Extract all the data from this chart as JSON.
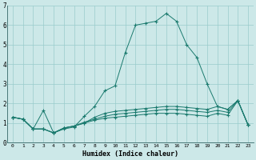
{
  "xlabel": "Humidex (Indice chaleur)",
  "background_color": "#cce8e8",
  "grid_color": "#99cccc",
  "line_color": "#1a7a6e",
  "xlim": [
    -0.5,
    23.5
  ],
  "ylim": [
    0,
    7
  ],
  "xticks": [
    0,
    1,
    2,
    3,
    4,
    5,
    6,
    7,
    8,
    9,
    10,
    11,
    12,
    13,
    14,
    15,
    16,
    17,
    18,
    19,
    20,
    21,
    22,
    23
  ],
  "yticks": [
    0,
    1,
    2,
    3,
    4,
    5,
    6,
    7
  ],
  "series": [
    [
      1.3,
      1.2,
      0.7,
      1.65,
      0.5,
      0.7,
      0.8,
      1.35,
      1.85,
      2.65,
      2.9,
      4.6,
      6.0,
      6.1,
      6.2,
      6.6,
      6.2,
      5.0,
      4.35,
      3.0,
      1.85,
      1.7,
      2.15,
      0.9
    ],
    [
      1.3,
      1.2,
      0.7,
      0.7,
      0.5,
      0.75,
      0.85,
      1.0,
      1.3,
      1.5,
      1.6,
      1.65,
      1.7,
      1.75,
      1.8,
      1.85,
      1.85,
      1.8,
      1.75,
      1.7,
      1.85,
      1.7,
      2.15,
      0.9
    ],
    [
      1.3,
      1.2,
      0.7,
      0.7,
      0.5,
      0.75,
      0.85,
      1.05,
      1.2,
      1.35,
      1.45,
      1.5,
      1.55,
      1.6,
      1.65,
      1.7,
      1.7,
      1.65,
      1.6,
      1.55,
      1.65,
      1.55,
      2.15,
      0.9
    ],
    [
      1.3,
      1.2,
      0.7,
      0.7,
      0.5,
      0.75,
      0.85,
      1.0,
      1.15,
      1.25,
      1.3,
      1.35,
      1.4,
      1.45,
      1.5,
      1.5,
      1.5,
      1.45,
      1.4,
      1.35,
      1.5,
      1.4,
      2.15,
      0.9
    ]
  ]
}
